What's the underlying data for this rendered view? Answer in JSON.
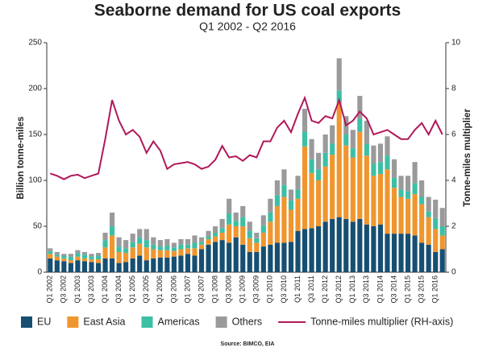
{
  "chart_data": {
    "type": "bar",
    "stacked": true,
    "title": "Seaborne demand for US coal exports",
    "subtitle": "Q1 2002 - Q2 2016",
    "y_label": "Billion tonne-miles",
    "y2_label": "Tonne-miles multiplier",
    "source": "Source: BIMCO, EIA",
    "categories": [
      "Q1 2002",
      null,
      "Q3 2002",
      null,
      "Q1 2003",
      null,
      "Q3 2003",
      null,
      "Q1 2004",
      null,
      "Q3 2004",
      null,
      "Q1 2005",
      null,
      "Q3 2005",
      null,
      "Q1 2006",
      null,
      "Q3 2006",
      null,
      "Q1 2007",
      null,
      "Q3 2007",
      null,
      "Q1 2008",
      null,
      "Q3 2008",
      null,
      "Q1 2009",
      null,
      "Q3 2009",
      null,
      "Q1 2010",
      null,
      "Q3 2010",
      null,
      "Q1 2011",
      null,
      "Q3 2011",
      null,
      "Q1 2012",
      null,
      "Q3 2012",
      null,
      "Q1 2013",
      null,
      "Q3 2013",
      null,
      "Q1 2014",
      null,
      "Q3 2014",
      null,
      "Q1 2015",
      null,
      "Q3 2015",
      null,
      "Q1 2016",
      null
    ],
    "series": [
      {
        "name": "EU",
        "color": "#164f72",
        "values": [
          15,
          13,
          12,
          10,
          13,
          12,
          11,
          10,
          15,
          15,
          10,
          11,
          15,
          18,
          13,
          15,
          16,
          16,
          17,
          18,
          20,
          18,
          25,
          30,
          33,
          35,
          32,
          38,
          30,
          22,
          22,
          28,
          30,
          32,
          32,
          33,
          45,
          47,
          48,
          50,
          55,
          58,
          60,
          58,
          55,
          58,
          52,
          50,
          52,
          42,
          42,
          42,
          42,
          40,
          32,
          30,
          22,
          25
        ]
      },
      {
        "name": "East Asia",
        "color": "#f0962e",
        "values": [
          5,
          4,
          3,
          3,
          4,
          3,
          3,
          4,
          12,
          25,
          12,
          10,
          12,
          13,
          14,
          10,
          8,
          8,
          6,
          7,
          6,
          8,
          5,
          6,
          6,
          8,
          20,
          12,
          20,
          15,
          10,
          15,
          25,
          40,
          50,
          35,
          35,
          90,
          60,
          50,
          60,
          70,
          125,
          80,
          70,
          95,
          75,
          55,
          55,
          70,
          50,
          40,
          38,
          45,
          42,
          30,
          25,
          15
        ]
      },
      {
        "name": "Americas",
        "color": "#3dbfa6",
        "values": [
          3,
          2,
          3,
          4,
          4,
          4,
          3,
          4,
          8,
          10,
          6,
          5,
          6,
          7,
          8,
          5,
          4,
          5,
          4,
          5,
          4,
          6,
          3,
          3,
          4,
          5,
          12,
          6,
          10,
          8,
          5,
          8,
          10,
          12,
          13,
          10,
          10,
          16,
          15,
          12,
          15,
          12,
          13,
          12,
          10,
          14,
          13,
          13,
          13,
          15,
          11,
          8,
          8,
          12,
          8,
          6,
          12,
          10
        ]
      },
      {
        "name": "Others",
        "color": "#9a9a9a",
        "values": [
          3,
          3,
          2,
          3,
          3,
          3,
          3,
          3,
          8,
          15,
          10,
          9,
          9,
          9,
          12,
          8,
          7,
          7,
          5,
          6,
          6,
          8,
          5,
          6,
          7,
          10,
          16,
          9,
          12,
          10,
          6,
          11,
          15,
          16,
          17,
          12,
          15,
          25,
          22,
          18,
          20,
          20,
          35,
          20,
          20,
          25,
          25,
          20,
          20,
          21,
          20,
          15,
          17,
          23,
          18,
          16,
          20,
          20
        ]
      },
      {
        "name": "Tonne-miles multiplier (RH-axis)",
        "color": "#b0185a",
        "type": "line",
        "axis": "y2",
        "values": [
          4.3,
          4.2,
          4.05,
          4.2,
          4.25,
          4.1,
          4.2,
          4.3,
          5.8,
          7.5,
          6.6,
          6.0,
          6.2,
          5.9,
          5.2,
          5.7,
          5.3,
          4.5,
          4.7,
          4.75,
          4.8,
          4.7,
          4.5,
          4.6,
          4.9,
          5.5,
          5.0,
          5.05,
          4.85,
          5.1,
          5.0,
          5.7,
          5.7,
          6.3,
          6.6,
          6.1,
          6.9,
          7.6,
          6.6,
          6.5,
          6.8,
          6.7,
          7.5,
          6.4,
          6.6,
          7.0,
          6.7,
          6.0,
          6.1,
          6.2,
          6.0,
          5.8,
          5.8,
          6.2,
          6.5,
          6.0,
          6.6,
          6.0
        ]
      }
    ],
    "ylim": [
      0,
      250
    ],
    "yticks": [
      0,
      50,
      100,
      150,
      200,
      250
    ],
    "y2lim": [
      0,
      10
    ],
    "y2ticks": [
      0,
      2,
      4,
      6,
      8,
      10
    ],
    "grid": false,
    "legend": "bottom"
  }
}
